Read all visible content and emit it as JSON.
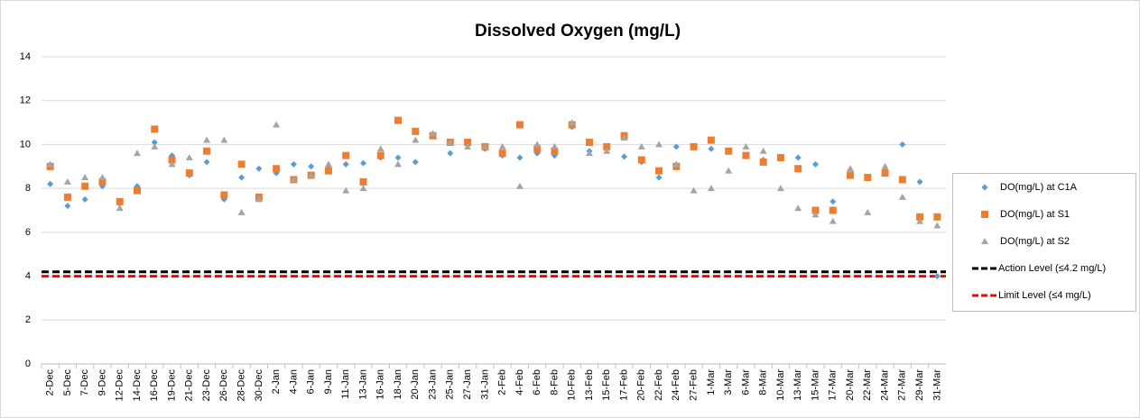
{
  "chart_data": {
    "type": "scatter",
    "title": "Dissolved Oxygen (mg/L)",
    "categories": [
      "2-Dec",
      "5-Dec",
      "7-Dec",
      "9-Dec",
      "12-Dec",
      "14-Dec",
      "16-Dec",
      "19-Dec",
      "21-Dec",
      "23-Dec",
      "26-Dec",
      "28-Dec",
      "30-Dec",
      "2-Jan",
      "4-Jan",
      "6-Jan",
      "9-Jan",
      "11-Jan",
      "13-Jan",
      "16-Jan",
      "18-Jan",
      "20-Jan",
      "23-Jan",
      "25-Jan",
      "27-Jan",
      "31-Jan",
      "2-Feb",
      "4-Feb",
      "6-Feb",
      "8-Feb",
      "10-Feb",
      "13-Feb",
      "15-Feb",
      "17-Feb",
      "20-Feb",
      "22-Feb",
      "24-Feb",
      "27-Feb",
      "1-Mar",
      "3-Mar",
      "6-Mar",
      "8-Mar",
      "10-Mar",
      "13-Mar",
      "15-Mar",
      "17-Mar",
      "20-Mar",
      "22-Mar",
      "24-Mar",
      "27-Mar",
      "29-Mar",
      "31-Mar"
    ],
    "series": [
      {
        "name": "DO(mg/L) at C1A",
        "color": "#5b9bd5",
        "marker": "diamond",
        "values": [
          8.2,
          7.2,
          7.5,
          8.1,
          7.3,
          8.1,
          10.1,
          9.5,
          8.6,
          9.2,
          7.5,
          8.5,
          8.9,
          8.7,
          9.1,
          9.0,
          8.9,
          9.1,
          9.15,
          9.4,
          9.4,
          9.2,
          10.4,
          9.6,
          10.1,
          9.8,
          9.5,
          9.4,
          9.6,
          9.5,
          10.8,
          9.7,
          9.9,
          9.45,
          9.2,
          8.5,
          9.9,
          9.9,
          9.8,
          9.7,
          9.5,
          9.3,
          9.4,
          9.4,
          9.1,
          7.4,
          8.6,
          8.5,
          8.8,
          10.0,
          8.3,
          4.0
        ]
      },
      {
        "name": "DO(mg/L) at S1",
        "color": "#ed7d31",
        "marker": "square",
        "values": [
          9.0,
          7.6,
          8.1,
          8.3,
          7.4,
          7.9,
          10.7,
          9.3,
          8.7,
          9.7,
          7.7,
          9.1,
          7.6,
          8.9,
          8.4,
          8.6,
          8.8,
          9.5,
          8.3,
          9.5,
          11.1,
          10.6,
          10.4,
          10.1,
          10.1,
          9.9,
          9.6,
          10.9,
          9.8,
          9.7,
          10.9,
          10.1,
          9.9,
          10.4,
          9.3,
          8.8,
          9.0,
          9.9,
          10.2,
          9.7,
          9.5,
          9.2,
          9.4,
          8.9,
          7.0,
          7.0,
          8.6,
          8.5,
          8.7,
          8.4,
          6.7,
          6.7
        ]
      },
      {
        "name": "DO(mg/L) at S2",
        "color": "#a5a5a5",
        "marker": "triangle",
        "values": [
          9.1,
          8.3,
          8.5,
          8.5,
          7.1,
          9.6,
          9.9,
          9.1,
          9.4,
          10.2,
          10.2,
          6.9,
          7.5,
          10.9,
          8.4,
          8.6,
          9.1,
          7.9,
          8.0,
          9.8,
          9.1,
          10.2,
          10.5,
          10.1,
          9.9,
          9.9,
          9.9,
          8.1,
          10.0,
          9.9,
          11.0,
          9.6,
          9.7,
          10.3,
          9.9,
          10.0,
          9.1,
          7.9,
          8.0,
          8.8,
          9.9,
          9.7,
          8.0,
          7.1,
          6.8,
          6.5,
          8.9,
          6.9,
          9.0,
          7.6,
          6.5,
          6.3
        ]
      }
    ],
    "reference_lines": [
      {
        "name": "Action Level (≤4.2 mg/L)",
        "color": "#000000",
        "value": 4.2
      },
      {
        "name": "Limit Level (≤4 mg/L)",
        "color": "#ff0000",
        "value": 4
      }
    ],
    "ylim": [
      0,
      14
    ],
    "yticks": [
      0,
      2,
      4,
      6,
      8,
      10,
      12,
      14
    ],
    "grid": true,
    "legend": "right"
  }
}
